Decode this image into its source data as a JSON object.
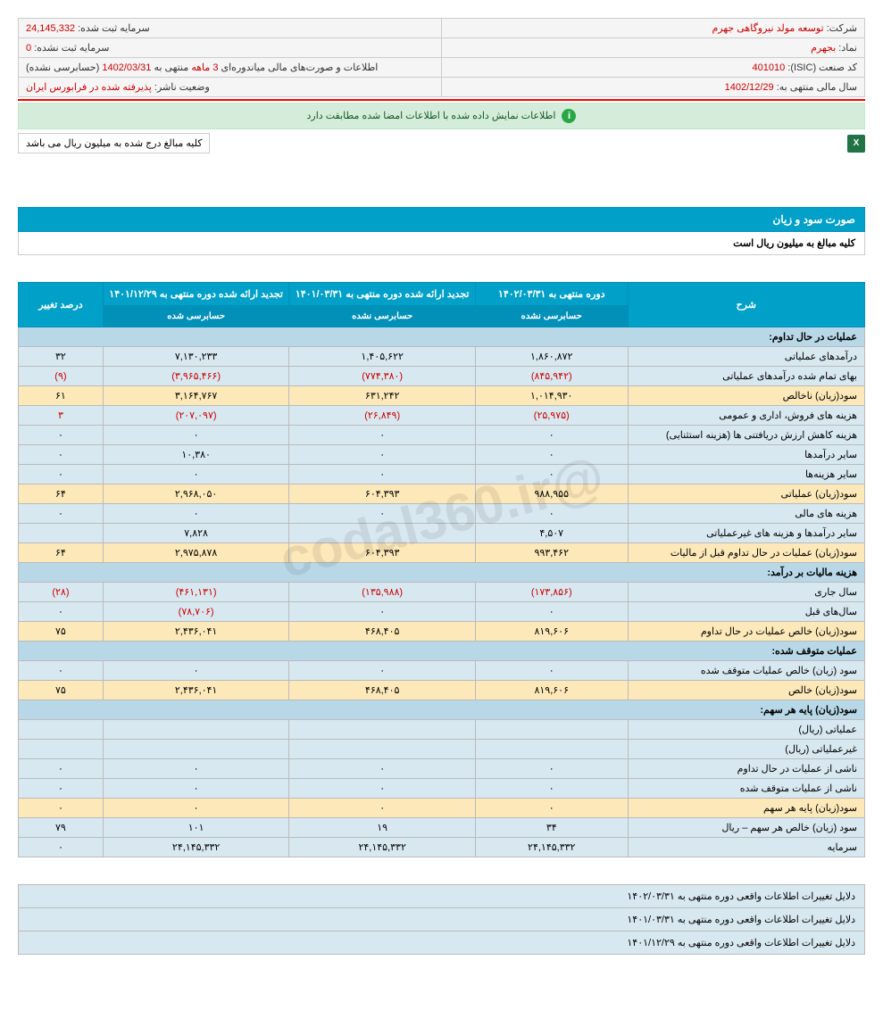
{
  "header": {
    "company_lbl": "شرکت:",
    "company_val": "توسعه مولد نیروگاهی جهرم",
    "capital_reg_lbl": "سرمایه ثبت شده:",
    "capital_reg_val": "24,145,332",
    "symbol_lbl": "نماد:",
    "symbol_val": "بجهرم",
    "capital_unreg_lbl": "سرمایه ثبت نشده:",
    "capital_unreg_val": "0",
    "isic_lbl": "کد صنعت (ISIC):",
    "isic_val": "401010",
    "report_lbl": "اطلاعات و صورت‌های مالی میاندوره‌ای",
    "report_period": "3 ماهه",
    "report_rest": "منتهی به",
    "report_date": "1402/03/31",
    "report_suffix": "(حسابرسی نشده)",
    "fy_lbl": "سال مالی منتهی به:",
    "fy_val": "1402/12/29",
    "status_lbl": "وضعیت ناشر:",
    "status_val": "پذیرفته شده در فرابورس ایران"
  },
  "info_text": "اطلاعات نمایش داده شده با اطلاعات امضا شده مطابقت دارد",
  "note_text": "کلیه مبالغ درج شده به میلیون ریال می باشد",
  "section_title": "صورت سود و زیان",
  "section_sub": "کلیه مبالغ به میلیون ریال است",
  "cols": {
    "desc": "شرح",
    "c1": "دوره منتهی به ۱۴۰۲/۰۳/۳۱",
    "c1s": "حسابرسی نشده",
    "c2": "تجدید ارائه شده دوره منتهی به ۱۴۰۱/۰۳/۳۱",
    "c2s": "حسابرسی نشده",
    "c3": "تجدید ارائه شده دوره منتهی به ۱۴۰۱/۱۲/۲۹",
    "c3s": "حسابرسی شده",
    "c4": "درصد تغییر"
  },
  "rows": [
    {
      "type": "header",
      "desc": "عملیات در حال تداوم:"
    },
    {
      "type": "blue",
      "desc": "درآمدهای عملیاتی",
      "v1": "۱,۸۶۰,۸۷۲",
      "v2": "۱,۴۰۵,۶۲۲",
      "v3": "۷,۱۳۰,۲۳۳",
      "v4": "۳۲"
    },
    {
      "type": "blue",
      "desc": "بهای تمام شده درآمدهای عملیاتی",
      "v1": "(۸۴۵,۹۴۲)",
      "v2": "(۷۷۴,۳۸۰)",
      "v3": "(۳,۹۶۵,۴۶۶)",
      "v4": "(۹)",
      "neg": true
    },
    {
      "type": "yellow",
      "desc": "سود(زیان) ناخالص",
      "v1": "۱,۰۱۴,۹۳۰",
      "v2": "۶۳۱,۲۴۲",
      "v3": "۳,۱۶۴,۷۶۷",
      "v4": "۶۱"
    },
    {
      "type": "blue",
      "desc": "هزینه های فروش، اداری و عمومی",
      "v1": "(۲۵,۹۷۵)",
      "v2": "(۲۶,۸۴۹)",
      "v3": "(۲۰۷,۰۹۷)",
      "v4": "۳",
      "neg": true
    },
    {
      "type": "blue",
      "desc": "هزینه کاهش ارزش دریافتنی ها (هزینه استثنایی)",
      "v1": "۰",
      "v2": "۰",
      "v3": "۰",
      "v4": "۰"
    },
    {
      "type": "blue",
      "desc": "سایر درآمدها",
      "v1": "۰",
      "v2": "۰",
      "v3": "۱۰,۳۸۰",
      "v4": "۰"
    },
    {
      "type": "blue",
      "desc": "سایر هزینه‌ها",
      "v1": "۰",
      "v2": "۰",
      "v3": "۰",
      "v4": "۰"
    },
    {
      "type": "yellow",
      "desc": "سود(زیان) عملیاتی",
      "v1": "۹۸۸,۹۵۵",
      "v2": "۶۰۴,۳۹۳",
      "v3": "۲,۹۶۸,۰۵۰",
      "v4": "۶۴"
    },
    {
      "type": "blue",
      "desc": "هزینه های مالی",
      "v1": "۰",
      "v2": "۰",
      "v3": "۰",
      "v4": "۰"
    },
    {
      "type": "blue",
      "desc": "سایر درآمدها و هزینه های غیرعملیاتی",
      "v1": "۴,۵۰۷",
      "v2": "",
      "v3": "۷,۸۲۸",
      "v4": ""
    },
    {
      "type": "yellow",
      "desc": "سود(زیان) عملیات در حال تداوم قبل از مالیات",
      "v1": "۹۹۳,۴۶۲",
      "v2": "۶۰۴,۳۹۳",
      "v3": "۲,۹۷۵,۸۷۸",
      "v4": "۶۴"
    },
    {
      "type": "header",
      "desc": "هزینه مالیات بر درآمد:"
    },
    {
      "type": "blue",
      "desc": "سال جاری",
      "v1": "(۱۷۳,۸۵۶)",
      "v2": "(۱۳۵,۹۸۸)",
      "v3": "(۴۶۱,۱۳۱)",
      "v4": "(۲۸)",
      "neg": true
    },
    {
      "type": "blue",
      "desc": "سال‌های قبل",
      "v1": "۰",
      "v2": "۰",
      "v3": "(۷۸,۷۰۶)",
      "v4": "۰",
      "neg3": true
    },
    {
      "type": "yellow",
      "desc": "سود(زیان) خالص عملیات در حال تداوم",
      "v1": "۸۱۹,۶۰۶",
      "v2": "۴۶۸,۴۰۵",
      "v3": "۲,۴۳۶,۰۴۱",
      "v4": "۷۵"
    },
    {
      "type": "header",
      "desc": "عملیات متوقف شده:"
    },
    {
      "type": "blue",
      "desc": "سود (زیان) خالص عملیات متوقف شده",
      "v1": "۰",
      "v2": "۰",
      "v3": "۰",
      "v4": "۰"
    },
    {
      "type": "yellow",
      "desc": "سود(زیان) خالص",
      "v1": "۸۱۹,۶۰۶",
      "v2": "۴۶۸,۴۰۵",
      "v3": "۲,۴۳۶,۰۴۱",
      "v4": "۷۵"
    },
    {
      "type": "header",
      "desc": "سود(زیان) پایه هر سهم:"
    },
    {
      "type": "blue",
      "desc": "عملیاتی (ریال)",
      "v1": "",
      "v2": "",
      "v3": "",
      "v4": ""
    },
    {
      "type": "blue",
      "desc": "غیرعملیاتی (ریال)",
      "v1": "",
      "v2": "",
      "v3": "",
      "v4": ""
    },
    {
      "type": "blue",
      "desc": "ناشی از عملیات در حال تداوم",
      "v1": "۰",
      "v2": "۰",
      "v3": "۰",
      "v4": "۰"
    },
    {
      "type": "blue",
      "desc": "ناشی از عملیات متوقف شده",
      "v1": "۰",
      "v2": "۰",
      "v3": "۰",
      "v4": "۰"
    },
    {
      "type": "yellow",
      "desc": "سود(زیان) پایه هر سهم",
      "v1": "۰",
      "v2": "۰",
      "v3": "۰",
      "v4": "۰"
    },
    {
      "type": "blue",
      "desc": "سود (زیان) خالص هر سهم – ریال",
      "v1": "۳۴",
      "v2": "۱۹",
      "v3": "۱۰۱",
      "v4": "۷۹"
    },
    {
      "type": "blue",
      "desc": "سرمایه",
      "v1": "۲۴,۱۴۵,۳۳۲",
      "v2": "۲۴,۱۴۵,۳۳۲",
      "v3": "۲۴,۱۴۵,۳۳۲",
      "v4": "۰"
    }
  ],
  "footer": {
    "r1": "دلایل تغییرات اطلاعات واقعی دوره منتهی به ۱۴۰۲/۰۳/۳۱",
    "r2": "دلایل تغییرات اطلاعات واقعی دوره منتهی به ۱۴۰۱/۰۳/۳۱",
    "r3": "دلایل تغییرات اطلاعات واقعی دوره منتهی به ۱۴۰۱/۱۲/۲۹"
  },
  "watermark": "@codal360.ir"
}
